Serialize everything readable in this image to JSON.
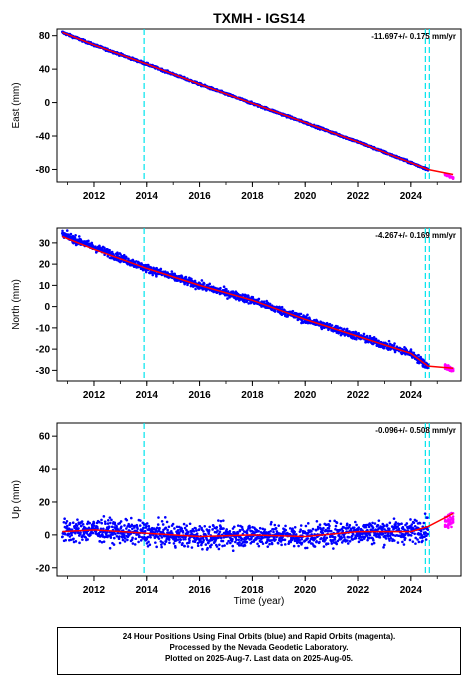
{
  "title": "TXMH - IGS14",
  "xlabel": "Time (year)",
  "footer": {
    "line1": "24 Hour Positions Using Final Orbits (blue) and Rapid Orbits (magenta).",
    "line2": "Processed by the Nevada Geodetic Laboratory.",
    "line3": "Plotted on 2025-Aug-7. Last data on 2025-Aug-05."
  },
  "colors": {
    "final_orbits": "#0000ff",
    "rapid_orbits": "#ff00ff",
    "model": "#ff0000",
    "equipment_change": "#00e5ee"
  },
  "chart_data": [
    {
      "type": "scatter",
      "title": "TXMH - IGS14",
      "ylabel": "East (mm)",
      "xlim": [
        2010.6,
        2025.9
      ],
      "ylim": [
        -95,
        88
      ],
      "xticks": [
        2012,
        2014,
        2016,
        2018,
        2020,
        2022,
        2024
      ],
      "yticks": [
        -80,
        -40,
        0,
        40,
        80
      ],
      "rate": "-11.697+/- 0.175 mm/yr",
      "vlines": [
        2013.9,
        2024.55,
        2024.7
      ],
      "series": [
        {
          "kind": "final",
          "x": [
            2010.8,
            2012.0,
            2014.0,
            2016.0,
            2018.0,
            2020.0,
            2022.0,
            2024.0,
            2024.65
          ],
          "y": [
            84,
            69,
            46,
            22,
            -1,
            -24,
            -47,
            -72,
            -80
          ]
        },
        {
          "kind": "rapid",
          "x": [
            2025.3,
            2025.6
          ],
          "y": [
            -86,
            -90
          ]
        },
        {
          "kind": "model",
          "x": [
            2010.8,
            2012.0,
            2014.0,
            2016.0,
            2018.0,
            2020.0,
            2022.0,
            2024.0,
            2024.65,
            2025.6
          ],
          "y": [
            84,
            69,
            46,
            22,
            -1,
            -24,
            -47,
            -72,
            -80,
            -86
          ]
        }
      ]
    },
    {
      "type": "scatter",
      "ylabel": "North (mm)",
      "xlim": [
        2010.6,
        2025.9
      ],
      "ylim": [
        -35,
        37
      ],
      "xticks": [
        2012,
        2014,
        2016,
        2018,
        2020,
        2022,
        2024
      ],
      "yticks": [
        -30,
        -20,
        -10,
        0,
        10,
        20,
        30
      ],
      "rate": "-4.267+/- 0.169 mm/yr",
      "vlines": [
        2013.9,
        2024.55,
        2024.7
      ],
      "series": [
        {
          "kind": "final",
          "x": [
            2010.8,
            2012.0,
            2014.0,
            2016.0,
            2018.0,
            2020.0,
            2022.0,
            2024.0,
            2024.65
          ],
          "y": [
            34,
            28,
            18,
            10,
            3,
            -6,
            -14,
            -22,
            -28
          ]
        },
        {
          "kind": "rapid",
          "x": [
            2025.3,
            2025.6
          ],
          "y": [
            -28,
            -30
          ]
        },
        {
          "kind": "model",
          "x": [
            2010.8,
            2012.0,
            2014.0,
            2016.0,
            2018.0,
            2020.0,
            2022.0,
            2024.0,
            2024.65,
            2025.6
          ],
          "y": [
            33,
            27,
            18,
            10,
            3,
            -6,
            -14,
            -22,
            -28,
            -29
          ]
        }
      ]
    },
    {
      "type": "scatter",
      "ylabel": "Up (mm)",
      "xlabel": "Time (year)",
      "xlim": [
        2010.6,
        2025.9
      ],
      "ylim": [
        -25,
        68
      ],
      "xticks": [
        2012,
        2014,
        2016,
        2018,
        2020,
        2022,
        2024
      ],
      "yticks": [
        -20,
        0,
        20,
        40,
        60
      ],
      "rate": "-0.096+/- 0.508 mm/yr",
      "vlines": [
        2013.9,
        2024.55,
        2024.7
      ],
      "series": [
        {
          "kind": "final",
          "x": [
            2010.8,
            2012.0,
            2014.0,
            2016.0,
            2018.0,
            2020.0,
            2022.0,
            2024.0,
            2024.65
          ],
          "y": [
            2,
            3,
            1,
            -1,
            0,
            -1,
            2,
            2,
            5
          ]
        },
        {
          "kind": "rapid",
          "x": [
            2025.3,
            2025.6
          ],
          "y": [
            8,
            10
          ]
        },
        {
          "kind": "model",
          "x": [
            2010.8,
            2012.0,
            2014.0,
            2016.0,
            2018.0,
            2020.0,
            2022.0,
            2024.0,
            2024.65,
            2025.6
          ],
          "y": [
            2,
            3,
            1,
            -1,
            0,
            -1,
            2,
            2,
            5,
            13
          ]
        }
      ]
    }
  ]
}
